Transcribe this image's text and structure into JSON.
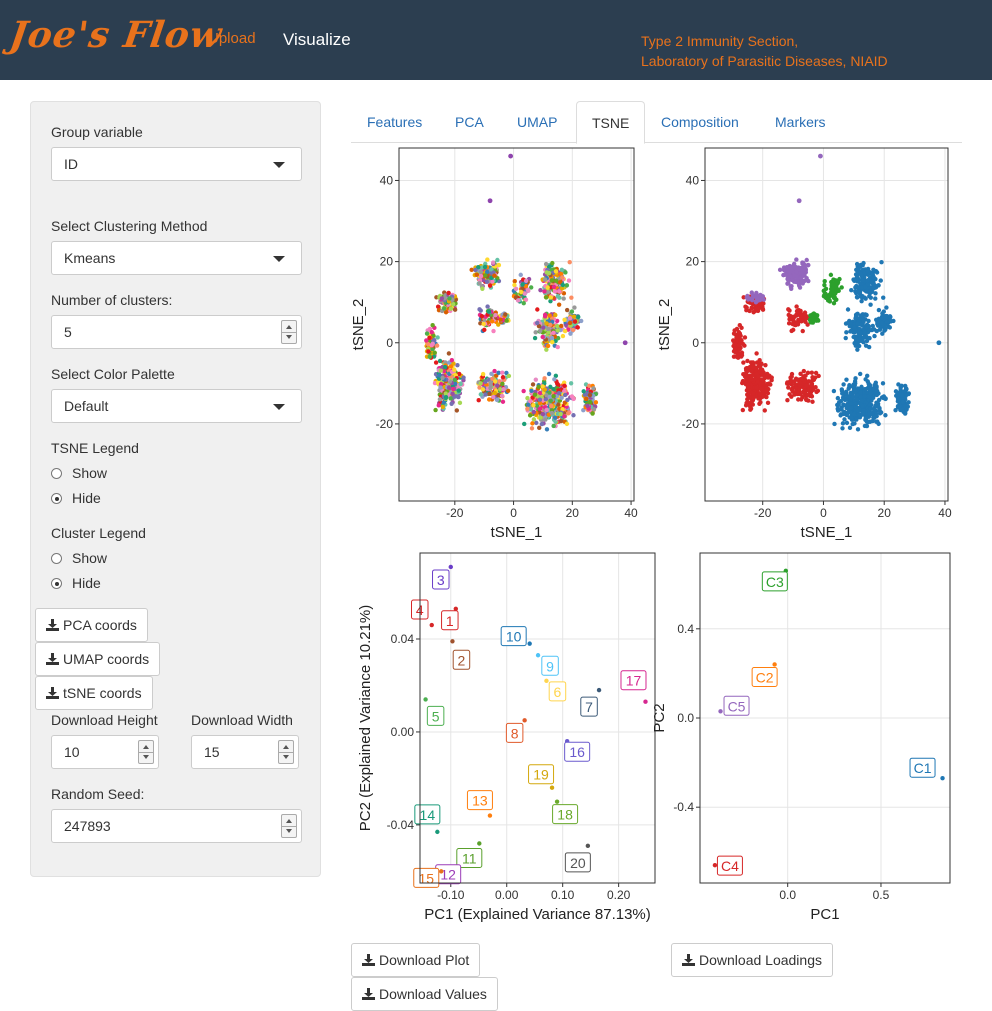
{
  "navbar": {
    "brand": "Joe's Flow",
    "links": [
      "Upload",
      "Visualize"
    ],
    "info_line1": "Type 2 Immunity Section,",
    "info_line2": "Laboratory of Parasitic Diseases, NIAID"
  },
  "sidebar": {
    "group_variable_label": "Group variable",
    "group_variable_value": "ID",
    "clustering_label": "Select Clustering Method",
    "clustering_value": "Kmeans",
    "num_clusters_label": "Number of clusters:",
    "num_clusters_value": "5",
    "palette_label": "Select Color Palette",
    "palette_value": "Default",
    "tsne_legend_label": "TSNE Legend",
    "tsne_legend_options": [
      "Show",
      "Hide"
    ],
    "tsne_legend_selected": "Hide",
    "cluster_legend_label": "Cluster Legend",
    "cluster_legend_options": [
      "Show",
      "Hide"
    ],
    "cluster_legend_selected": "Hide",
    "pca_coords_button": "PCA coords",
    "umap_coords_button": "UMAP coords",
    "tsne_coords_button": "tSNE coords",
    "download_height_label": "Download Height",
    "download_height_value": "10",
    "download_width_label": "Download Width",
    "download_width_value": "15",
    "random_seed_label": "Random Seed:",
    "random_seed_value": "247893"
  },
  "tabs": [
    {
      "label": "Features",
      "active": false
    },
    {
      "label": "PCA",
      "active": false
    },
    {
      "label": "UMAP",
      "active": false
    },
    {
      "label": "TSNE",
      "active": true
    },
    {
      "label": "Composition",
      "active": false
    },
    {
      "label": "Markers",
      "active": false
    }
  ],
  "buttons": {
    "download_plot": "Download Plot",
    "download_values": "Download Values",
    "download_loadings": "Download Loadings"
  },
  "colors": {
    "navbar_bg": "#2c3e50",
    "accent_orange": "#e8721c",
    "tab_link": "#2a6fb5",
    "cluster_blue": "#1f77b4",
    "cluster_red": "#d62728",
    "cluster_purple": "#9467bd",
    "cluster_green": "#2ca02c",
    "cluster_orange": "#ff7f0e"
  },
  "chart_data": [
    {
      "type": "scatter",
      "xlabel": "tSNE_1",
      "ylabel": "tSNE_2",
      "xticks": [
        -20,
        0,
        20,
        40
      ],
      "yticks": [
        -20,
        0,
        20,
        40
      ],
      "xlim": [
        -39,
        41
      ],
      "ylim": [
        -39,
        48
      ],
      "grid": true,
      "colored_by": "ID"
    },
    {
      "type": "scatter",
      "xlabel": "tSNE_1",
      "ylabel": "tSNE_2",
      "xticks": [
        -20,
        0,
        20,
        40
      ],
      "yticks": [
        -20,
        0,
        20,
        40
      ],
      "xlim": [
        -39,
        41
      ],
      "ylim": [
        -39,
        48
      ],
      "grid": true,
      "colored_by": "cluster"
    },
    {
      "type": "scatter",
      "xlabel": "PC1 (Explained Variance 87.13%)",
      "ylabel": "PC2 (Explained Variance 10.21%)",
      "xticks": [
        -0.1,
        0.0,
        0.1,
        0.2
      ],
      "yticks": [
        -0.04,
        0.0,
        0.04
      ],
      "xlim": [
        -0.155,
        0.265
      ],
      "ylim": [
        -0.065,
        0.077
      ],
      "grid": true,
      "points": [
        {
          "label": "1",
          "x": -0.091,
          "y": 0.053,
          "color": "#d62728"
        },
        {
          "label": "2",
          "x": -0.097,
          "y": 0.039,
          "color": "#a0522d"
        },
        {
          "label": "3",
          "x": -0.1,
          "y": 0.071,
          "color": "#6a3dc8"
        },
        {
          "label": "4",
          "x": -0.134,
          "y": 0.046,
          "color": "#d62728"
        },
        {
          "label": "5",
          "x": -0.145,
          "y": 0.014,
          "color": "#4caf50"
        },
        {
          "label": "6",
          "x": 0.071,
          "y": 0.022,
          "color": "#ffd54f"
        },
        {
          "label": "7",
          "x": 0.165,
          "y": 0.018,
          "color": "#3c5a78"
        },
        {
          "label": "8",
          "x": 0.032,
          "y": 0.005,
          "color": "#e05a2a"
        },
        {
          "label": "9",
          "x": 0.056,
          "y": 0.033,
          "color": "#4fc3f7"
        },
        {
          "label": "10",
          "x": 0.041,
          "y": 0.038,
          "color": "#1f77b4"
        },
        {
          "label": "11",
          "x": -0.049,
          "y": -0.048,
          "color": "#5aa02c"
        },
        {
          "label": "12",
          "x": -0.11,
          "y": -0.058,
          "color": "#9b3db8"
        },
        {
          "label": "13",
          "x": -0.03,
          "y": -0.036,
          "color": "#ff7f0e"
        },
        {
          "label": "14",
          "x": -0.124,
          "y": -0.043,
          "color": "#1a9a7a"
        },
        {
          "label": "15",
          "x": -0.117,
          "y": -0.06,
          "color": "#e8721c"
        },
        {
          "label": "16",
          "x": 0.108,
          "y": -0.004,
          "color": "#6a5acd"
        },
        {
          "label": "17",
          "x": 0.248,
          "y": 0.013,
          "color": "#d62790"
        },
        {
          "label": "18",
          "x": 0.09,
          "y": -0.03,
          "color": "#6aaa2c"
        },
        {
          "label": "19",
          "x": 0.081,
          "y": -0.024,
          "color": "#d4a80e"
        },
        {
          "label": "20",
          "x": 0.145,
          "y": -0.049,
          "color": "#555555"
        }
      ]
    },
    {
      "type": "scatter",
      "xlabel": "PC1",
      "ylabel": "PC2",
      "xticks": [
        0.0,
        0.5
      ],
      "yticks": [
        -0.4,
        0.0,
        0.4
      ],
      "xlim": [
        -0.47,
        0.87
      ],
      "ylim": [
        -0.74,
        0.74
      ],
      "grid": true,
      "points": [
        {
          "label": "C1",
          "x": 0.83,
          "y": -0.27,
          "color": "#1f77b4"
        },
        {
          "label": "C2",
          "x": -0.07,
          "y": 0.24,
          "color": "#ff7f0e"
        },
        {
          "label": "C3",
          "x": -0.01,
          "y": 0.66,
          "color": "#2ca02c"
        },
        {
          "label": "C4",
          "x": -0.39,
          "y": -0.66,
          "color": "#d62728"
        },
        {
          "label": "C5",
          "x": -0.36,
          "y": 0.03,
          "color": "#9467bd"
        }
      ]
    }
  ]
}
